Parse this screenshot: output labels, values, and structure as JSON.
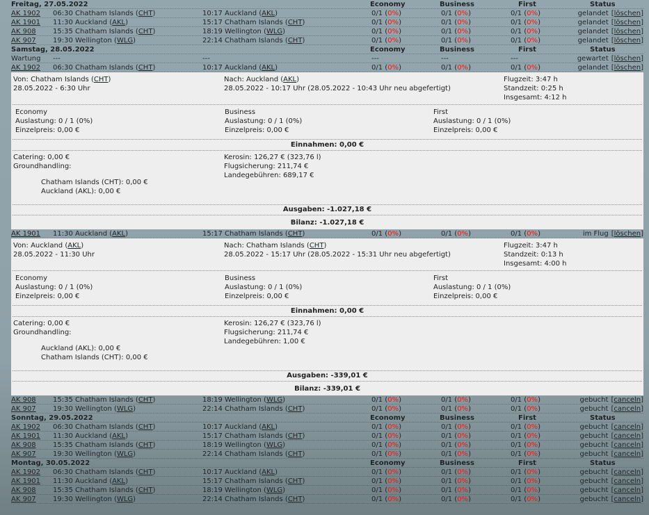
{
  "days": [
    {
      "date": "Freitag, 27.05.2022",
      "economy": "Economy",
      "business": "Business",
      "first": "First",
      "status": "Status",
      "flights": [
        {
          "no": "AK 1902",
          "dep": "06:30 Chatham Islands",
          "dep_code": "CHT",
          "arr": "10:17 Auckland",
          "arr_code": "AKL",
          "economy": "0/1",
          "economy_pct": "0%",
          "business": "0/1",
          "business_pct": "0%",
          "first": "0/1",
          "first_pct": "0%",
          "status": "gelandet",
          "action": "löschen"
        },
        {
          "no": "AK 1901",
          "dep": "11:30 Auckland",
          "dep_code": "AKL",
          "arr": "15:17 Chatham Islands",
          "arr_code": "CHT",
          "economy": "0/1",
          "economy_pct": "0%",
          "business": "0/1",
          "business_pct": "0%",
          "first": "0/1",
          "first_pct": "0%",
          "status": "gelandet",
          "action": "löschen"
        },
        {
          "no": "AK 908",
          "dep": "15:35 Chatham Islands",
          "dep_code": "CHT",
          "arr": "18:19 Wellington",
          "arr_code": "WLG",
          "economy": "0/1",
          "economy_pct": "0%",
          "business": "0/1",
          "business_pct": "0%",
          "first": "0/1",
          "first_pct": "0%",
          "status": "gelandet",
          "action": "löschen"
        },
        {
          "no": "AK 907",
          "dep": "19:30 Wellington",
          "dep_code": "WLG",
          "arr": "22:14 Chatham Islands",
          "arr_code": "CHT",
          "economy": "0/1",
          "economy_pct": "0%",
          "business": "0/1",
          "business_pct": "0%",
          "first": "0/1",
          "first_pct": "0%",
          "status": "gelandet",
          "action": "löschen"
        }
      ]
    },
    {
      "date": "Samstag, 28.05.2022",
      "economy": "Economy",
      "business": "Business",
      "first": "First",
      "status": "Status",
      "flights": [
        {
          "no": "Wartung",
          "dep": "---",
          "arr": "---",
          "economy": "---",
          "business": "---",
          "first": "---",
          "status": "gewartet",
          "action": "löschen"
        },
        {
          "no": "AK 1902",
          "dep": "06:30 Chatham Islands",
          "dep_code": "CHT",
          "arr": "10:17 Auckland",
          "arr_code": "AKL",
          "economy": "0/1",
          "economy_pct": "0%",
          "business": "0/1",
          "business_pct": "0%",
          "first": "0/1",
          "first_pct": "0%",
          "status": "gelandet",
          "action": "löschen",
          "details": {
            "from": "Von: Chatham Islands",
            "from_code": "CHT",
            "from_time": "28.05.2022 - 6:30 Uhr",
            "to": "Nach: Auckland",
            "to_code": "AKL",
            "to_time": "28.05.2022 - 10:17 Uhr (28.05.2022 - 10:43 Uhr neu abgefertigt)",
            "times": [
              "Flugzeit: 3:47 h",
              "Standzeit: 0:25 h",
              "Insgesamt: 4:12 h"
            ],
            "classes": [
              [
                "Economy",
                "Auslastung: 0 / 1 (0%)",
                "Einzelpreis: 0,00 €"
              ],
              [
                "Business",
                "Auslastung: 0 / 1 (0%)",
                "Einzelpreis: 0,00 €"
              ],
              [
                "First",
                "Auslastung: 0 / 1 (0%)",
                "Einzelpreis: 0,00 €"
              ]
            ],
            "income": "Einnahmen: 0,00 €",
            "costs_left": [
              "Catering: 0,00 €",
              "Groundhandling:"
            ],
            "ground": [
              "Chatham Islands (CHT): 0,00 €",
              "Auckland (AKL): 0,00 €"
            ],
            "costs_right": [
              "Kerosin: 126,27 € (323,76 l)",
              "Flugsicherung: 211,74 €",
              "Landegebühren: 689,17 €"
            ],
            "expenses": "Ausgaben: -1.027,18 €",
            "balance": "Bilanz: -1.027,18 €"
          }
        },
        {
          "no": "AK 1901",
          "dep": "11:30 Auckland",
          "dep_code": "AKL",
          "arr": "15:17 Chatham Islands",
          "arr_code": "CHT",
          "economy": "0/1",
          "economy_pct": "0%",
          "business": "0/1",
          "business_pct": "0%",
          "first": "0/1",
          "first_pct": "0%",
          "status": "im Flug",
          "action": "löschen",
          "details": {
            "from": "Von: Auckland",
            "from_code": "AKL",
            "from_time": "28.05.2022 - 11:30 Uhr",
            "to": "Nach: Chatham Islands",
            "to_code": "CHT",
            "to_time": "28.05.2022 - 15:17 Uhr (28.05.2022 - 15:31 Uhr neu abgefertigt)",
            "times": [
              "Flugzeit: 3:47 h",
              "Standzeit: 0:13 h",
              "Insgesamt: 4:00 h"
            ],
            "classes": [
              [
                "Economy",
                "Auslastung: 0 / 1 (0%)",
                "Einzelpreis: 0,00 €"
              ],
              [
                "Business",
                "Auslastung: 0 / 1 (0%)",
                "Einzelpreis: 0,00 €"
              ],
              [
                "First",
                "Auslastung: 0 / 1 (0%)",
                "Einzelpreis: 0,00 €"
              ]
            ],
            "income": "Einnahmen: 0,00 €",
            "costs_left": [
              "Catering: 0,00 €",
              "Groundhandling:"
            ],
            "ground": [
              "Auckland (AKL): 0,00 €",
              "Chatham Islands (CHT): 0,00 €"
            ],
            "costs_right": [
              "Kerosin: 126,27 € (323,76 l)",
              "Flugsicherung: 211,74 €",
              "Landegebühren: 1,00 €"
            ],
            "expenses": "Ausgaben: -339,01 €",
            "balance": "Bilanz: -339,01 €"
          }
        },
        {
          "no": "AK 908",
          "dep": "15:35 Chatham Islands",
          "dep_code": "CHT",
          "arr": "18:19 Wellington",
          "arr_code": "WLG",
          "economy": "0/1",
          "economy_pct": "0%",
          "business": "0/1",
          "business_pct": "0%",
          "first": "0/1",
          "first_pct": "0%",
          "status": "gebucht",
          "action": "canceln"
        },
        {
          "no": "AK 907",
          "dep": "19:30 Wellington",
          "dep_code": "WLG",
          "arr": "22:14 Chatham Islands",
          "arr_code": "CHT",
          "economy": "0/1",
          "economy_pct": "0%",
          "business": "0/1",
          "business_pct": "0%",
          "first": "0/1",
          "first_pct": "0%",
          "status": "gebucht",
          "action": "canceln"
        }
      ]
    },
    {
      "date": "Sonntag, 29.05.2022",
      "economy": "Economy",
      "business": "Business",
      "first": "First",
      "status": "Status",
      "flights": [
        {
          "no": "AK 1902",
          "dep": "06:30 Chatham Islands",
          "dep_code": "CHT",
          "arr": "10:17 Auckland",
          "arr_code": "AKL",
          "economy": "0/1",
          "economy_pct": "0%",
          "business": "0/1",
          "business_pct": "0%",
          "first": "0/1",
          "first_pct": "0%",
          "status": "gebucht",
          "action": "canceln"
        },
        {
          "no": "AK 1901",
          "dep": "11:30 Auckland",
          "dep_code": "AKL",
          "arr": "15:17 Chatham Islands",
          "arr_code": "CHT",
          "economy": "0/1",
          "economy_pct": "0%",
          "business": "0/1",
          "business_pct": "0%",
          "first": "0/1",
          "first_pct": "0%",
          "status": "gebucht",
          "action": "canceln"
        },
        {
          "no": "AK 908",
          "dep": "15:35 Chatham Islands",
          "dep_code": "CHT",
          "arr": "18:19 Wellington",
          "arr_code": "WLG",
          "economy": "0/1",
          "economy_pct": "0%",
          "business": "0/1",
          "business_pct": "0%",
          "first": "0/1",
          "first_pct": "0%",
          "status": "gebucht",
          "action": "canceln"
        },
        {
          "no": "AK 907",
          "dep": "19:30 Wellington",
          "dep_code": "WLG",
          "arr": "22:14 Chatham Islands",
          "arr_code": "CHT",
          "economy": "0/1",
          "economy_pct": "0%",
          "business": "0/1",
          "business_pct": "0%",
          "first": "0/1",
          "first_pct": "0%",
          "status": "gebucht",
          "action": "canceln"
        }
      ]
    },
    {
      "date": "Montag, 30.05.2022",
      "economy": "Economy",
      "business": "Business",
      "first": "First",
      "status": "Status",
      "flights": [
        {
          "no": "AK 1902",
          "dep": "06:30 Chatham Islands",
          "dep_code": "CHT",
          "arr": "10:17 Auckland",
          "arr_code": "AKL",
          "economy": "0/1",
          "economy_pct": "0%",
          "business": "0/1",
          "business_pct": "0%",
          "first": "0/1",
          "first_pct": "0%",
          "status": "gebucht",
          "action": "canceln"
        },
        {
          "no": "AK 1901",
          "dep": "11:30 Auckland",
          "dep_code": "AKL",
          "arr": "15:17 Chatham Islands",
          "arr_code": "CHT",
          "economy": "0/1",
          "economy_pct": "0%",
          "business": "0/1",
          "business_pct": "0%",
          "first": "0/1",
          "first_pct": "0%",
          "status": "gebucht",
          "action": "canceln"
        },
        {
          "no": "AK 908",
          "dep": "15:35 Chatham Islands",
          "dep_code": "CHT",
          "arr": "18:19 Wellington",
          "arr_code": "WLG",
          "economy": "0/1",
          "economy_pct": "0%",
          "business": "0/1",
          "business_pct": "0%",
          "first": "0/1",
          "first_pct": "0%",
          "status": "gebucht",
          "action": "canceln"
        },
        {
          "no": "AK 907",
          "dep": "19:30 Wellington",
          "dep_code": "WLG",
          "arr": "22:14 Chatham Islands",
          "arr_code": "CHT",
          "economy": "0/1",
          "economy_pct": "0%",
          "business": "0/1",
          "business_pct": "0%",
          "first": "0/1",
          "first_pct": "0%",
          "status": "gebucht",
          "action": "canceln"
        }
      ]
    }
  ]
}
